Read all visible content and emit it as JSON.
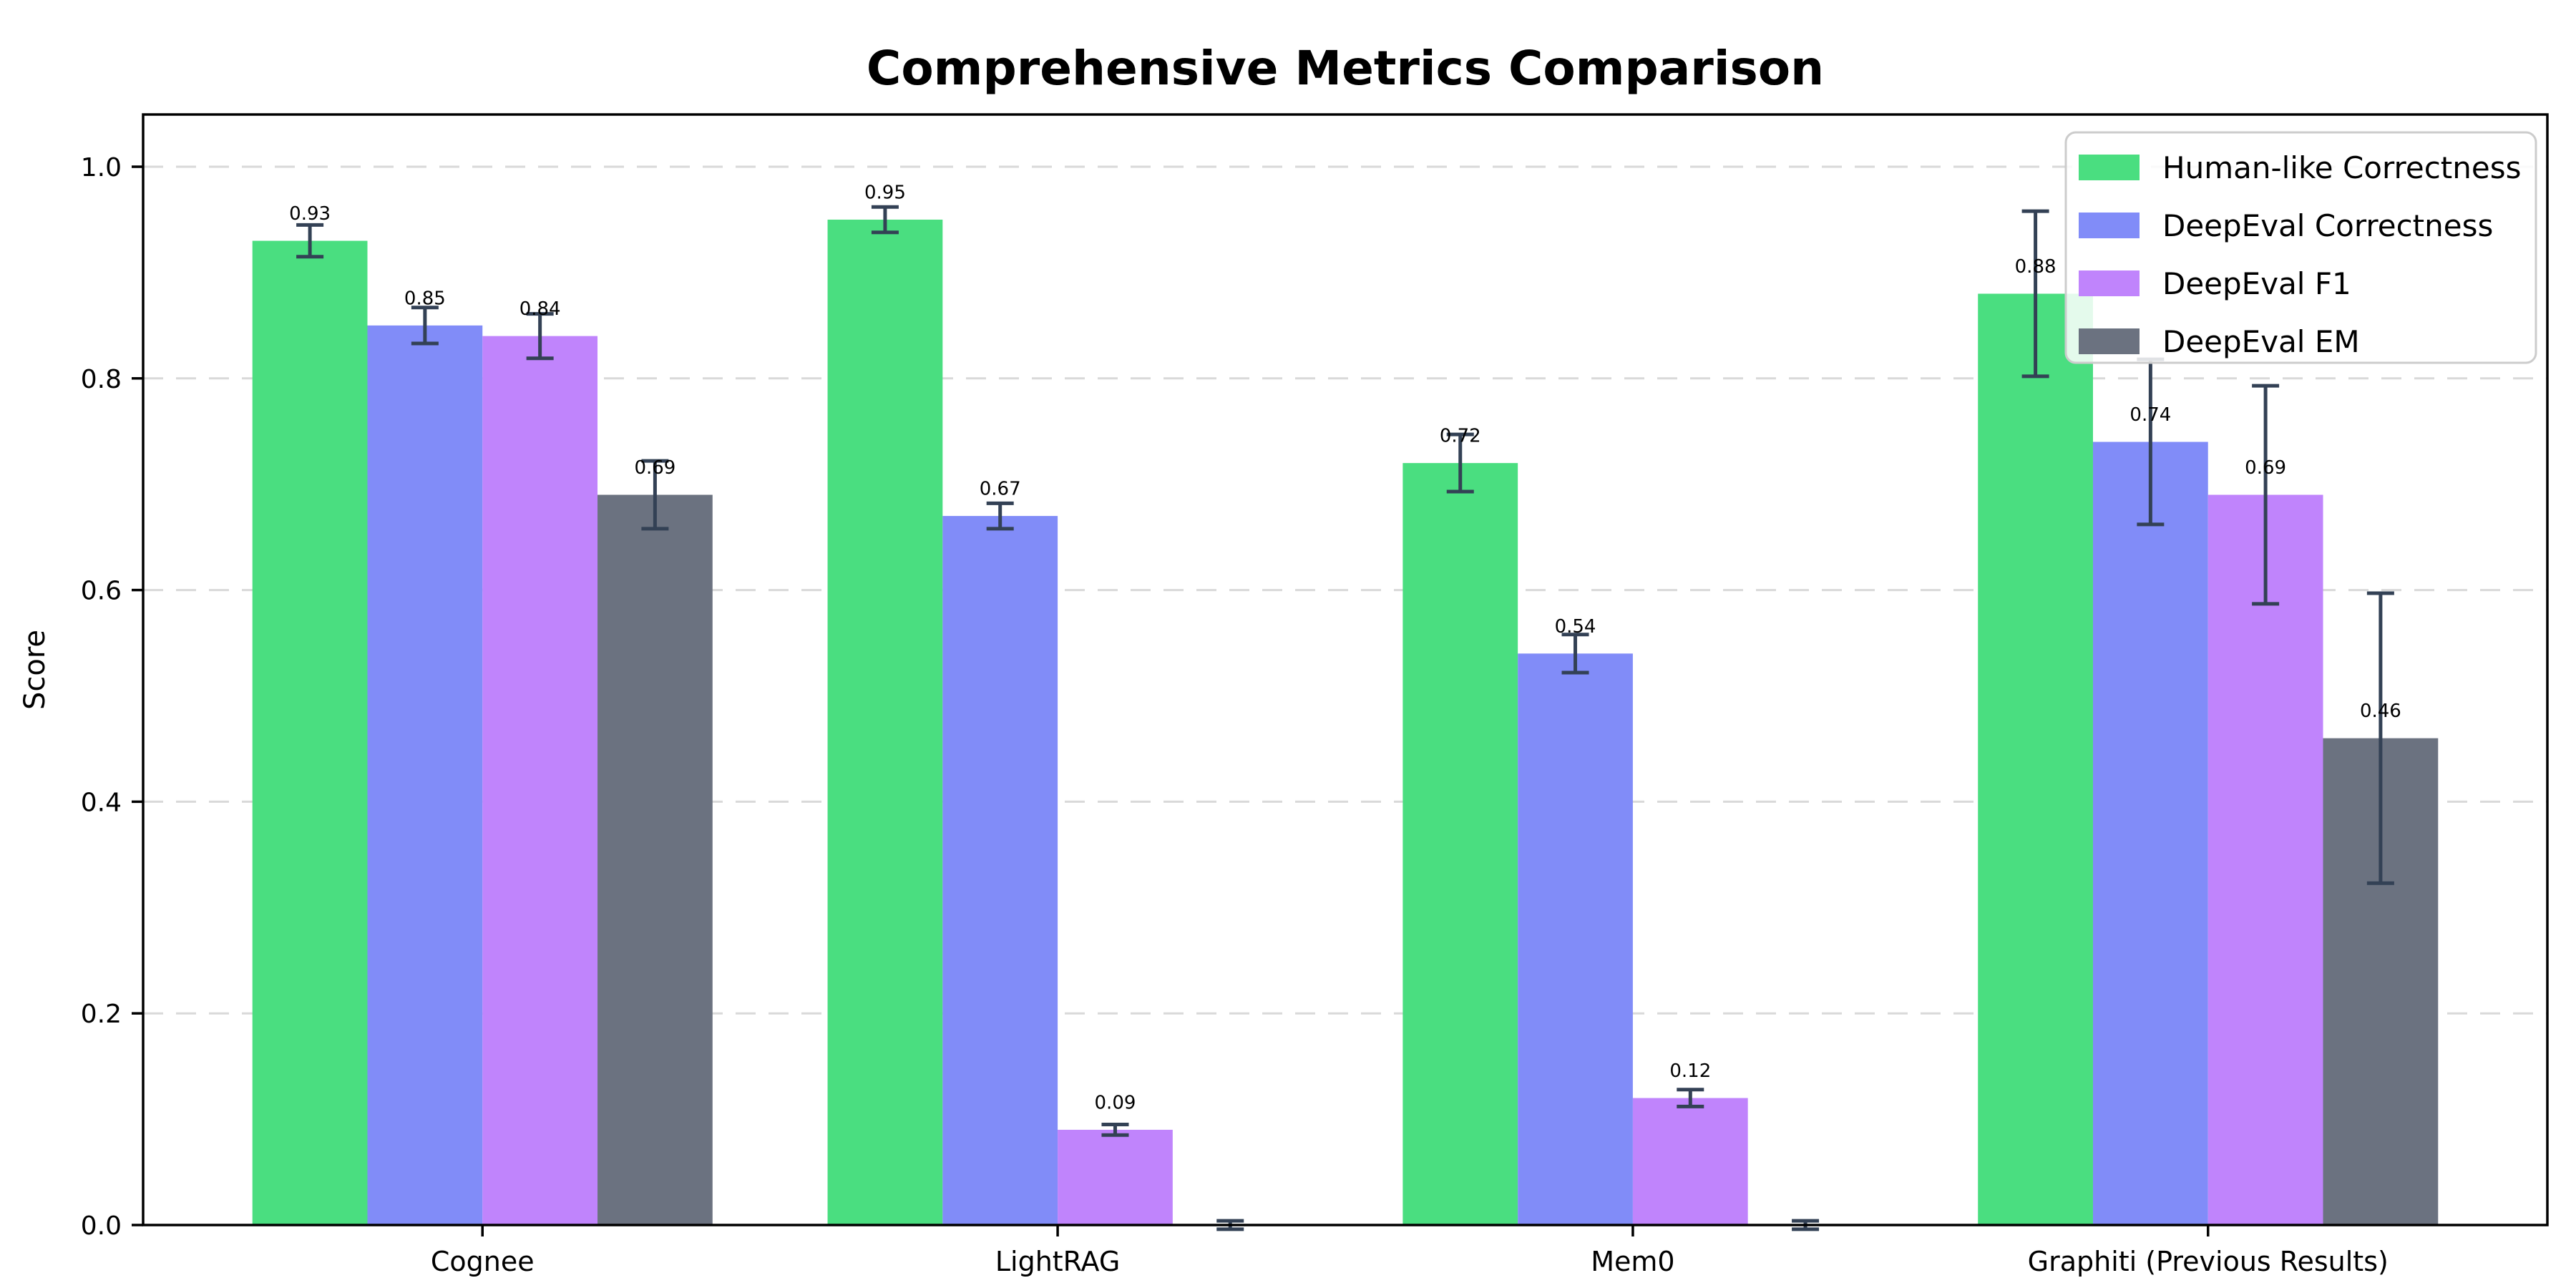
{
  "chart_data": {
    "type": "bar",
    "title": "Comprehensive Metrics Comparison",
    "xlabel": "",
    "ylabel": "Score",
    "categories": [
      "Cognee",
      "LightRAG",
      "Mem0",
      "Graphiti (Previous Results)"
    ],
    "series": [
      {
        "name": "Human-like Correctness",
        "color": "#4ade80",
        "values": [
          0.93,
          0.95,
          0.72,
          0.88
        ],
        "errors": [
          0.015,
          0.012,
          0.027,
          0.078
        ]
      },
      {
        "name": "DeepEval Correctness",
        "color": "#818cf8",
        "values": [
          0.85,
          0.67,
          0.54,
          0.74
        ],
        "errors": [
          0.017,
          0.012,
          0.018,
          0.078
        ]
      },
      {
        "name": "DeepEval F1",
        "color": "#c084fc",
        "values": [
          0.84,
          0.09,
          0.12,
          0.69
        ],
        "errors": [
          0.021,
          0.005,
          0.008,
          0.103
        ]
      },
      {
        "name": "DeepEval EM",
        "color": "#6b7280",
        "values": [
          0.69,
          0.0,
          0.0,
          0.46
        ],
        "errors": [
          0.032,
          0.004,
          0.004,
          0.137
        ]
      }
    ],
    "bar_value_labels": [
      [
        "0.93",
        "0.95",
        "0.72",
        "0.88"
      ],
      [
        "0.85",
        "0.67",
        "0.54",
        "0.74"
      ],
      [
        "0.84",
        "0.09",
        "0.12",
        "0.69"
      ],
      [
        "0.69",
        "",
        "",
        "0.46"
      ]
    ],
    "yticks": [
      "0.0",
      "0.2",
      "0.4",
      "0.6",
      "0.8",
      "1.0"
    ],
    "ylim": [
      0,
      1.05
    ],
    "grid": "horizontal-dashed",
    "legend_position": "upper-right",
    "colors": {
      "error_bar": "#334155",
      "grid_line": "#d9d9d9",
      "axis": "#000000",
      "background": "#ffffff",
      "legend_border": "#cccccc",
      "legend_background": "rgba(255,255,255,0.85)"
    }
  }
}
